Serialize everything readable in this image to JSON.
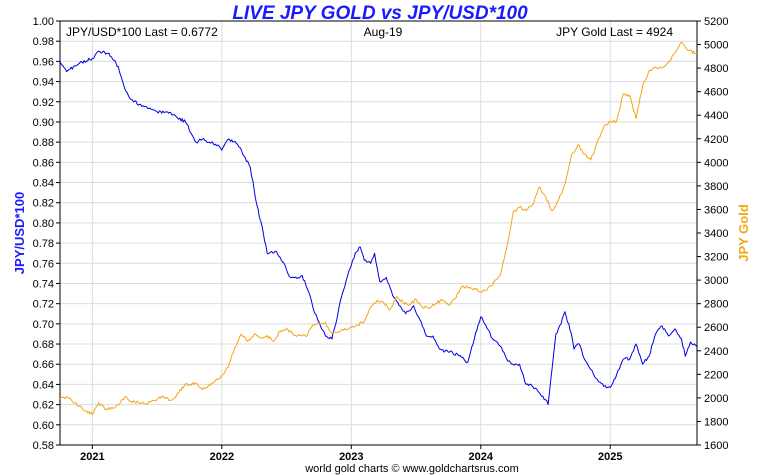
{
  "chart_data": {
    "type": "line",
    "title": "LIVE JPY GOLD vs JPY/USD*100",
    "header_left": "JPY/USD*100 Last = 0.6772",
    "header_center": "Aug-19",
    "header_right": "JPY Gold Last = 4924",
    "footer": "world gold charts © www.goldchartsrus.com",
    "ylabel_left": "JPY/USD*100",
    "ylabel_right": "JPY Gold",
    "ylim_left": [
      0.58,
      1.0
    ],
    "ylim_right": [
      1600,
      5200
    ],
    "yticks_left": [
      "0.58",
      "0.60",
      "0.62",
      "0.64",
      "0.66",
      "0.68",
      "0.70",
      "0.72",
      "0.74",
      "0.76",
      "0.78",
      "0.80",
      "0.82",
      "0.84",
      "0.86",
      "0.88",
      "0.90",
      "0.92",
      "0.94",
      "0.96",
      "0.98",
      "1.00"
    ],
    "yticks_right": [
      "1600",
      "1800",
      "2000",
      "2200",
      "2400",
      "2600",
      "2800",
      "3000",
      "3200",
      "3400",
      "3600",
      "3800",
      "4000",
      "4200",
      "4400",
      "4600",
      "4800",
      "5000",
      "5200"
    ],
    "xlim": [
      2020.75,
      2025.67
    ],
    "xticks": [
      {
        "label": "2021",
        "x": 2021.0
      },
      {
        "label": "2022",
        "x": 2022.0
      },
      {
        "label": "2023",
        "x": 2023.0
      },
      {
        "label": "2024",
        "x": 2024.0
      },
      {
        "label": "2025",
        "x": 2025.0
      }
    ],
    "grid": true,
    "series": [
      {
        "name": "JPY/USD*100",
        "axis": "left",
        "color": "#0000e6",
        "x": [
          2020.75,
          2020.8,
          2020.9,
          2021.0,
          2021.05,
          2021.12,
          2021.2,
          2021.25,
          2021.3,
          2021.4,
          2021.5,
          2021.58,
          2021.65,
          2021.72,
          2021.8,
          2021.85,
          2021.95,
          2022.0,
          2022.05,
          2022.12,
          2022.18,
          2022.22,
          2022.27,
          2022.32,
          2022.35,
          2022.42,
          2022.48,
          2022.52,
          2022.58,
          2022.62,
          2022.67,
          2022.72,
          2022.75,
          2022.8,
          2022.85,
          2022.88,
          2022.92,
          2022.97,
          2023.0,
          2023.03,
          2023.07,
          2023.1,
          2023.15,
          2023.18,
          2023.22,
          2023.27,
          2023.32,
          2023.37,
          2023.42,
          2023.48,
          2023.53,
          2023.58,
          2023.63,
          2023.68,
          2023.75,
          2023.82,
          2023.87,
          2023.9,
          2023.95,
          2024.0,
          2024.05,
          2024.1,
          2024.15,
          2024.2,
          2024.25,
          2024.3,
          2024.35,
          2024.4,
          2024.45,
          2024.5,
          2024.52,
          2024.55,
          2024.58,
          2024.62,
          2024.65,
          2024.7,
          2024.72,
          2024.76,
          2024.8,
          2024.85,
          2024.9,
          2024.95,
          2025.0,
          2025.05,
          2025.1,
          2025.15,
          2025.2,
          2025.25,
          2025.3,
          2025.35,
          2025.4,
          2025.45,
          2025.5,
          2025.55,
          2025.58,
          2025.62,
          2025.67
        ],
        "y": [
          0.96,
          0.95,
          0.958,
          0.963,
          0.97,
          0.968,
          0.955,
          0.933,
          0.922,
          0.915,
          0.91,
          0.91,
          0.905,
          0.9,
          0.88,
          0.883,
          0.878,
          0.872,
          0.883,
          0.878,
          0.865,
          0.855,
          0.818,
          0.79,
          0.77,
          0.772,
          0.76,
          0.747,
          0.745,
          0.748,
          0.732,
          0.71,
          0.702,
          0.688,
          0.685,
          0.7,
          0.725,
          0.747,
          0.758,
          0.77,
          0.776,
          0.763,
          0.76,
          0.77,
          0.742,
          0.746,
          0.728,
          0.718,
          0.71,
          0.718,
          0.704,
          0.688,
          0.688,
          0.675,
          0.672,
          0.67,
          0.665,
          0.662,
          0.685,
          0.707,
          0.695,
          0.684,
          0.678,
          0.665,
          0.66,
          0.66,
          0.64,
          0.638,
          0.632,
          0.625,
          0.62,
          0.655,
          0.69,
          0.7,
          0.712,
          0.69,
          0.675,
          0.68,
          0.665,
          0.655,
          0.645,
          0.638,
          0.637,
          0.65,
          0.665,
          0.665,
          0.68,
          0.66,
          0.668,
          0.69,
          0.698,
          0.688,
          0.695,
          0.685,
          0.668,
          0.682,
          0.677
        ]
      },
      {
        "name": "JPY Gold",
        "axis": "right",
        "color": "#f5a516",
        "x": [
          2020.75,
          2020.8,
          2020.9,
          2021.0,
          2021.05,
          2021.1,
          2021.15,
          2021.2,
          2021.25,
          2021.3,
          2021.4,
          2021.5,
          2021.55,
          2021.6,
          2021.65,
          2021.72,
          2021.8,
          2021.85,
          2021.9,
          2021.95,
          2022.0,
          2022.05,
          2022.1,
          2022.15,
          2022.2,
          2022.25,
          2022.3,
          2022.35,
          2022.4,
          2022.45,
          2022.5,
          2022.55,
          2022.6,
          2022.65,
          2022.7,
          2022.75,
          2022.8,
          2022.85,
          2022.9,
          2022.95,
          2023.0,
          2023.05,
          2023.1,
          2023.15,
          2023.2,
          2023.25,
          2023.3,
          2023.35,
          2023.4,
          2023.45,
          2023.5,
          2023.55,
          2023.6,
          2023.65,
          2023.7,
          2023.75,
          2023.8,
          2023.85,
          2023.9,
          2023.95,
          2024.0,
          2024.05,
          2024.1,
          2024.15,
          2024.2,
          2024.25,
          2024.3,
          2024.35,
          2024.4,
          2024.45,
          2024.5,
          2024.55,
          2024.6,
          2024.65,
          2024.7,
          2024.75,
          2024.8,
          2024.85,
          2024.9,
          2024.95,
          2025.0,
          2025.05,
          2025.1,
          2025.15,
          2025.2,
          2025.25,
          2025.3,
          2025.35,
          2025.4,
          2025.45,
          2025.5,
          2025.55,
          2025.6,
          2025.67
        ],
        "y": [
          1990,
          2010,
          1930,
          1860,
          1960,
          1900,
          1920,
          1940,
          2010,
          1970,
          1950,
          1990,
          2010,
          1980,
          2020,
          2120,
          2120,
          2070,
          2110,
          2150,
          2190,
          2260,
          2430,
          2540,
          2480,
          2540,
          2510,
          2530,
          2480,
          2570,
          2590,
          2540,
          2530,
          2520,
          2620,
          2630,
          2640,
          2550,
          2560,
          2590,
          2600,
          2620,
          2650,
          2770,
          2830,
          2810,
          2750,
          2860,
          2810,
          2790,
          2840,
          2770,
          2760,
          2800,
          2830,
          2790,
          2840,
          2940,
          2940,
          2930,
          2900,
          2920,
          2980,
          3040,
          3270,
          3580,
          3620,
          3590,
          3640,
          3790,
          3710,
          3590,
          3680,
          3810,
          4060,
          4150,
          4070,
          4020,
          4170,
          4300,
          4340,
          4350,
          4580,
          4570,
          4370,
          4650,
          4780,
          4810,
          4800,
          4850,
          4930,
          5020,
          4950,
          4924
        ]
      }
    ]
  }
}
